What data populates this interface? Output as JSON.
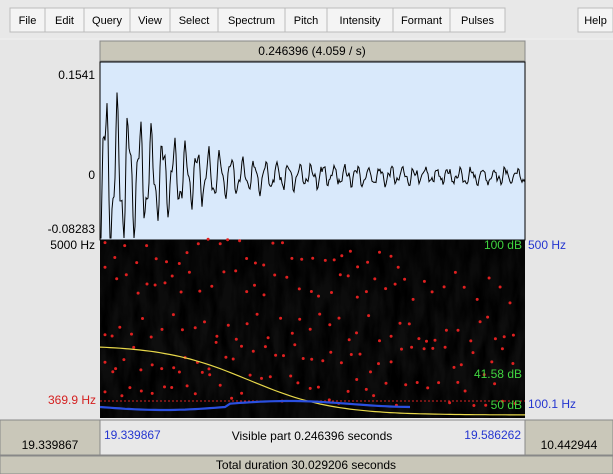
{
  "menu": [
    "File",
    "Edit",
    "Query",
    "View",
    "Select",
    "Spectrum",
    "Pitch",
    "Intensity",
    "Formant",
    "Pulses",
    "Help"
  ],
  "window": {
    "selection_header": "0.246396 (4.059 / s)",
    "waveform": {
      "max": "0.1541",
      "zero": "0",
      "min": "-0.08283"
    },
    "spectrogram": {
      "top_frequency": "5000 Hz",
      "cursor_frequency": "369.9 Hz",
      "pitch_top": "500 Hz",
      "pitch_cursor": "100.1 Hz",
      "intensity_top": "100 dB",
      "intensity_value": "41.58 dB",
      "intensity_bottom": "50 dB"
    },
    "footer": {
      "window_start": "19.339867",
      "visible_start": "19.339867",
      "visible_part": "Visible part 0.246396 seconds",
      "visible_end": "19.586262",
      "window_end": "10.442944",
      "total_duration": "Total duration 30.029206 seconds"
    }
  }
}
